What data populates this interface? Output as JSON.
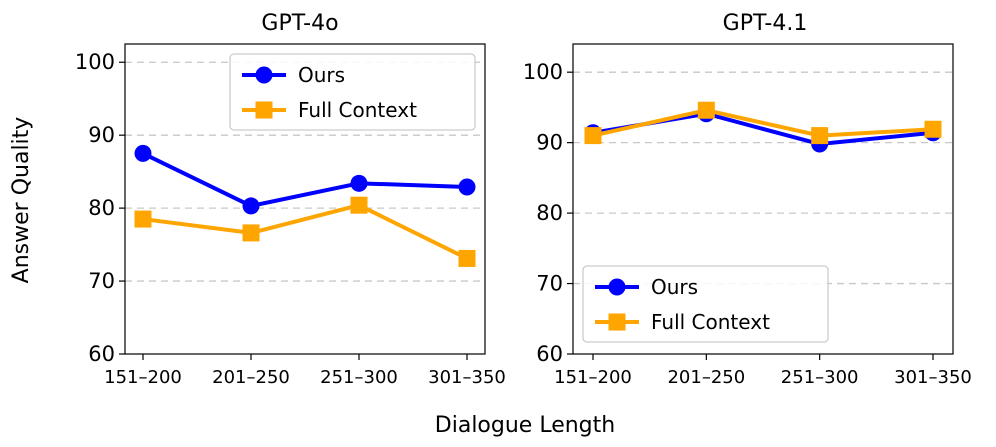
{
  "figure": {
    "ylabel": "Answer Quality",
    "xlabel": "Dialogue Length"
  },
  "chart_data": [
    {
      "type": "line",
      "title": "GPT-4o",
      "categories": [
        "151–200",
        "201–250",
        "251–300",
        "301–350"
      ],
      "ylim": [
        60,
        102.5
      ],
      "yticks": [
        60,
        70,
        80,
        90,
        100
      ],
      "grid": "horizontal-dashed",
      "legend": "top-right",
      "series": [
        {
          "name": "Ours",
          "color": "#0000ff",
          "marker": "circle",
          "values": [
            87.5,
            80.3,
            83.4,
            82.9
          ]
        },
        {
          "name": "Full Context",
          "color": "#ffa500",
          "marker": "square",
          "values": [
            78.5,
            76.6,
            80.4,
            73.1
          ]
        }
      ]
    },
    {
      "type": "line",
      "title": "GPT-4.1",
      "categories": [
        "151–200",
        "201–250",
        "251–300",
        "301–350"
      ],
      "ylim": [
        60,
        104
      ],
      "yticks": [
        60,
        70,
        80,
        90,
        100
      ],
      "grid": "horizontal-dashed",
      "legend": "lower-left",
      "series": [
        {
          "name": "Ours",
          "color": "#0000ff",
          "marker": "circle",
          "values": [
            91.4,
            94.1,
            89.8,
            91.4
          ]
        },
        {
          "name": "Full Context",
          "color": "#ffa500",
          "marker": "square",
          "values": [
            91.0,
            94.6,
            91.0,
            91.9
          ]
        }
      ]
    }
  ]
}
